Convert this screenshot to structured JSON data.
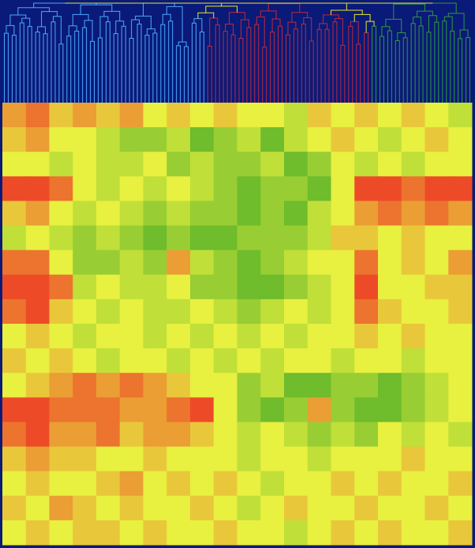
{
  "chart_data": {
    "type": "heatmap",
    "colorscale": [
      "#1f9a1f",
      "#e8f040",
      "#ee2222"
    ],
    "zlim": [
      0,
      1
    ],
    "z": [
      [
        0.7,
        0.8,
        0.6,
        0.7,
        0.6,
        0.7,
        0.5,
        0.6,
        0.5,
        0.6,
        0.5,
        0.5,
        0.4,
        0.6,
        0.5,
        0.6,
        0.5,
        0.6,
        0.5,
        0.4
      ],
      [
        0.6,
        0.7,
        0.5,
        0.5,
        0.4,
        0.3,
        0.3,
        0.4,
        0.2,
        0.3,
        0.4,
        0.2,
        0.4,
        0.5,
        0.6,
        0.5,
        0.4,
        0.5,
        0.6,
        0.5
      ],
      [
        0.5,
        0.5,
        0.4,
        0.5,
        0.4,
        0.4,
        0.5,
        0.3,
        0.4,
        0.3,
        0.3,
        0.4,
        0.2,
        0.3,
        0.5,
        0.4,
        0.5,
        0.4,
        0.5,
        0.5
      ],
      [
        0.9,
        0.9,
        0.8,
        0.5,
        0.4,
        0.5,
        0.4,
        0.5,
        0.4,
        0.3,
        0.2,
        0.3,
        0.3,
        0.2,
        0.5,
        0.9,
        0.9,
        0.8,
        0.9,
        0.9
      ],
      [
        0.6,
        0.7,
        0.5,
        0.4,
        0.5,
        0.4,
        0.3,
        0.4,
        0.3,
        0.3,
        0.2,
        0.3,
        0.2,
        0.4,
        0.5,
        0.7,
        0.8,
        0.7,
        0.8,
        0.7
      ],
      [
        0.4,
        0.5,
        0.4,
        0.3,
        0.4,
        0.3,
        0.2,
        0.3,
        0.2,
        0.2,
        0.3,
        0.3,
        0.3,
        0.4,
        0.6,
        0.6,
        0.5,
        0.6,
        0.5,
        0.5
      ],
      [
        0.8,
        0.8,
        0.5,
        0.3,
        0.3,
        0.4,
        0.3,
        0.7,
        0.4,
        0.3,
        0.2,
        0.3,
        0.4,
        0.5,
        0.5,
        0.8,
        0.5,
        0.6,
        0.5,
        0.7
      ],
      [
        0.9,
        0.9,
        0.8,
        0.4,
        0.5,
        0.4,
        0.4,
        0.5,
        0.3,
        0.3,
        0.2,
        0.2,
        0.3,
        0.4,
        0.5,
        0.9,
        0.5,
        0.5,
        0.6,
        0.6
      ],
      [
        0.8,
        0.9,
        0.6,
        0.5,
        0.4,
        0.5,
        0.4,
        0.4,
        0.5,
        0.4,
        0.3,
        0.4,
        0.5,
        0.4,
        0.5,
        0.8,
        0.6,
        0.5,
        0.5,
        0.6
      ],
      [
        0.5,
        0.6,
        0.5,
        0.4,
        0.5,
        0.5,
        0.4,
        0.5,
        0.4,
        0.5,
        0.4,
        0.5,
        0.4,
        0.5,
        0.5,
        0.6,
        0.5,
        0.6,
        0.5,
        0.5
      ],
      [
        0.6,
        0.5,
        0.6,
        0.5,
        0.4,
        0.5,
        0.5,
        0.4,
        0.5,
        0.4,
        0.5,
        0.4,
        0.5,
        0.5,
        0.4,
        0.5,
        0.5,
        0.4,
        0.5,
        0.5
      ],
      [
        0.5,
        0.6,
        0.7,
        0.8,
        0.7,
        0.8,
        0.7,
        0.6,
        0.5,
        0.5,
        0.3,
        0.4,
        0.2,
        0.2,
        0.3,
        0.3,
        0.2,
        0.3,
        0.4,
        0.5
      ],
      [
        0.9,
        0.9,
        0.8,
        0.8,
        0.8,
        0.7,
        0.7,
        0.8,
        0.9,
        0.5,
        0.3,
        0.2,
        0.3,
        0.7,
        0.3,
        0.2,
        0.2,
        0.3,
        0.4,
        0.5
      ],
      [
        0.8,
        0.9,
        0.7,
        0.7,
        0.8,
        0.6,
        0.7,
        0.7,
        0.6,
        0.5,
        0.4,
        0.5,
        0.4,
        0.3,
        0.4,
        0.3,
        0.5,
        0.4,
        0.5,
        0.4
      ],
      [
        0.6,
        0.7,
        0.6,
        0.6,
        0.5,
        0.5,
        0.6,
        0.5,
        0.5,
        0.5,
        0.4,
        0.5,
        0.5,
        0.4,
        0.5,
        0.5,
        0.5,
        0.6,
        0.5,
        0.5
      ],
      [
        0.5,
        0.6,
        0.5,
        0.5,
        0.6,
        0.7,
        0.5,
        0.6,
        0.5,
        0.6,
        0.5,
        0.4,
        0.5,
        0.5,
        0.6,
        0.5,
        0.6,
        0.5,
        0.5,
        0.6
      ],
      [
        0.6,
        0.5,
        0.7,
        0.6,
        0.5,
        0.6,
        0.5,
        0.5,
        0.6,
        0.5,
        0.4,
        0.5,
        0.6,
        0.5,
        0.5,
        0.6,
        0.5,
        0.5,
        0.6,
        0.5
      ],
      [
        0.5,
        0.6,
        0.5,
        0.6,
        0.6,
        0.5,
        0.6,
        0.5,
        0.5,
        0.6,
        0.5,
        0.5,
        0.4,
        0.5,
        0.6,
        0.5,
        0.6,
        0.5,
        0.5,
        0.6
      ]
    ]
  }
}
